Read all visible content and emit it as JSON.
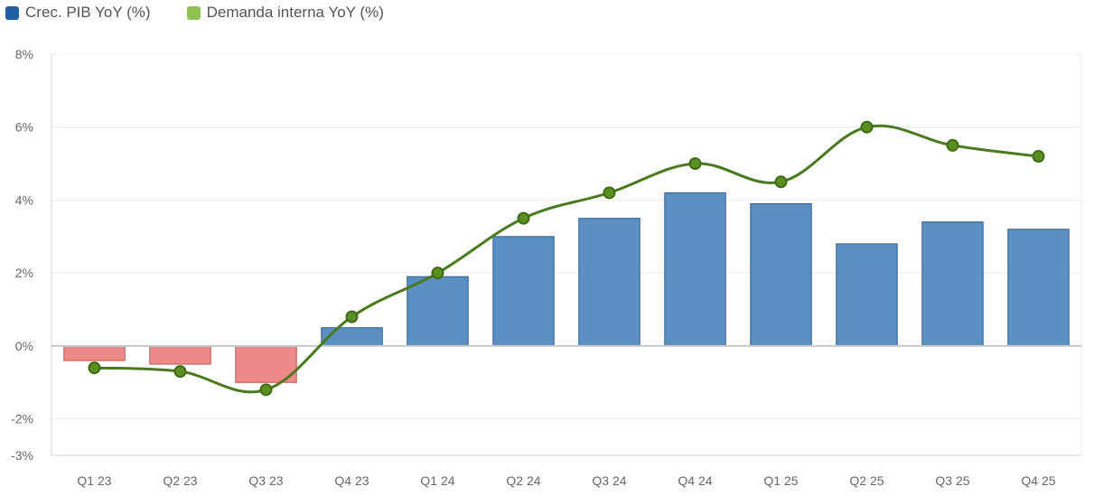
{
  "legend": {
    "items": [
      {
        "label": "Crec. PIB YoY (%)",
        "color": "#1f5fa6"
      },
      {
        "label": "Demanda interna YoY (%)",
        "color": "#8dc152"
      }
    ]
  },
  "chart_data": {
    "type": "bar",
    "categories": [
      "Q1 23",
      "Q2 23",
      "Q3 23",
      "Q4 23",
      "Q1 24",
      "Q2 24",
      "Q3 24",
      "Q4 24",
      "Q1 25",
      "Q2 25",
      "Q3 25",
      "Q4 25"
    ],
    "series": [
      {
        "name": "Crec. PIB YoY (%)",
        "type": "bar",
        "values": [
          -0.4,
          -0.5,
          -1.0,
          0.5,
          1.9,
          3.0,
          3.5,
          4.2,
          3.9,
          2.8,
          3.4,
          3.2
        ]
      },
      {
        "name": "Demanda interna YoY (%)",
        "type": "line",
        "values": [
          -0.6,
          -0.7,
          -1.2,
          0.8,
          2.0,
          3.5,
          4.2,
          5.0,
          4.5,
          6.0,
          5.5,
          5.2
        ]
      }
    ],
    "ylim": [
      -3,
      8
    ],
    "yticks": [
      -3,
      -2,
      0,
      2,
      4,
      6,
      8
    ],
    "ytick_labels": [
      "-3%",
      "-2%",
      "0%",
      "2%",
      "4%",
      "6%",
      "8%"
    ],
    "xlabel": "",
    "ylabel": "",
    "grid": true,
    "legend_position": "top-left",
    "colors": {
      "positive_bar": "#5b8ec1",
      "positive_bar_stroke": "#2e5f93",
      "negative_bar": "#ed8a87",
      "negative_bar_stroke": "#b95a57",
      "line": "#4a7a1e",
      "marker_fill": "#5a8f21",
      "marker_stroke": "#3e6b14",
      "grid": "#ececec",
      "axis": "#d6d6d6",
      "zero_line": "#c8c8c8"
    }
  }
}
